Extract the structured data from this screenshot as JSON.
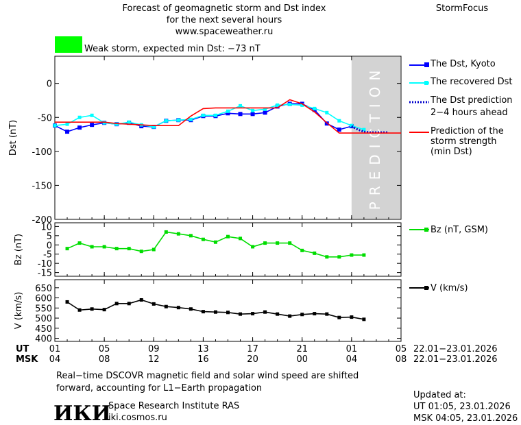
{
  "header": {
    "title_line1": "Forecast of geomagnetic storm and Dst index",
    "title_line2": "for the next several hours",
    "site": "www.spaceweather.ru",
    "brand": "StormFocus"
  },
  "status": {
    "color": "#00ff00",
    "text": "Weak storm, expected min Dst: −73 nT"
  },
  "prediction_watermark": "PREDICTION",
  "axis_labels": {
    "dst": "Dst (nT)",
    "bz": "Bz (nT)",
    "v": "V (km/s)"
  },
  "x_axis": {
    "ut_label": "UT",
    "msk_label": "MSK",
    "ut_ticks": [
      "01",
      "05",
      "09",
      "13",
      "17",
      "21",
      "01",
      "05"
    ],
    "msk_ticks": [
      "04",
      "08",
      "12",
      "16",
      "20",
      "00",
      "04",
      "08"
    ],
    "ut_range": "22.01−23.01.2026",
    "msk_range": "22.01−23.01.2026"
  },
  "legend": {
    "dst_kyoto": "The Dst, Kyoto",
    "recovered": "The recovered Dst",
    "pred_line1": "The Dst prediction",
    "pred_line2": "2−4 hours ahead",
    "strength_line1": "Prediction of the",
    "strength_line2": "storm strength",
    "strength_line3": "(min Dst)",
    "bz": "Bz (nT, GSM)",
    "v": "V (km/s)"
  },
  "footer": {
    "note_line1": "Real−time DSCOVR magnetic field and solar wind speed are shifted",
    "note_line2": "forward, accounting for L1−Earth propagation",
    "logo_text": "ИКИ",
    "institute": "Space Research Institute RAS",
    "site": "iki.cosmos.ru",
    "updated_label": "Updated at:",
    "updated_ut": "UT   01:05, 23.01.2026",
    "updated_msk": "MSK 04:05, 23.01.2026"
  },
  "chart_data": [
    {
      "type": "line",
      "panel": "dst",
      "ylabel": "Dst (nT)",
      "xlim": [
        0,
        28
      ],
      "ylim": [
        -200,
        40
      ],
      "yticks": [
        -200,
        -150,
        -100,
        -50,
        0
      ],
      "prediction_zone_x": [
        24,
        28
      ],
      "series": [
        {
          "name": "The Dst, Kyoto",
          "color": "#0000ff",
          "x": [
            0,
            1,
            2,
            3,
            4,
            5,
            6,
            7,
            8,
            9,
            10,
            11,
            12,
            13,
            14,
            15,
            16,
            17,
            18,
            19,
            20,
            21,
            22,
            23,
            24
          ],
          "y": [
            -62,
            -71,
            -65,
            -61,
            -58,
            -60,
            -58,
            -63,
            -64,
            -55,
            -54,
            -54,
            -48,
            -48,
            -44,
            -45,
            -45,
            -43,
            -34,
            -30,
            -30,
            -39,
            -59,
            -68,
            -63
          ]
        },
        {
          "name": "The recovered Dst",
          "color": "#00ffff",
          "x": [
            0,
            1,
            2,
            3,
            4,
            5,
            6,
            7,
            8,
            9,
            10,
            11,
            12,
            13,
            14,
            15,
            16,
            17,
            18,
            19,
            20,
            21,
            22,
            23,
            24,
            25
          ],
          "y": [
            -62,
            -60,
            -50,
            -47,
            -58,
            -60,
            -57,
            -61,
            -64,
            -55,
            -54,
            -53,
            -47,
            -47,
            -41,
            -33,
            -40,
            -38,
            -32,
            -31,
            -32,
            -37,
            -43,
            -55,
            -62,
            -68
          ]
        },
        {
          "name": "The Dst prediction 2−4 hours ahead",
          "color": "#0000cc",
          "x": [
            24,
            24.5,
            25,
            25.5,
            26,
            26.5,
            27
          ],
          "y": [
            -63,
            -68,
            -71,
            -72,
            -72,
            -72,
            -72
          ]
        },
        {
          "name": "Prediction of the storm strength (min Dst)",
          "color": "#ff0000",
          "x": [
            0,
            4,
            5,
            7,
            8,
            10,
            11,
            12,
            13,
            14,
            17,
            18,
            19,
            20,
            21,
            22,
            23,
            24,
            28
          ],
          "y": [
            -57,
            -57,
            -59,
            -61,
            -62,
            -62,
            -48,
            -37,
            -36,
            -36,
            -36,
            -36,
            -24,
            -30,
            -42,
            -58,
            -73,
            -73,
            -73
          ]
        }
      ]
    },
    {
      "type": "line",
      "panel": "bz",
      "ylabel": "Bz (nT)",
      "xlim": [
        0,
        28
      ],
      "ylim": [
        -17,
        12
      ],
      "yticks": [
        -15,
        -10,
        -5,
        0,
        5,
        10
      ],
      "series": [
        {
          "name": "Bz (nT, GSM)",
          "color": "#00dd00",
          "x": [
            1,
            2,
            3,
            4,
            5,
            6,
            7,
            8,
            9,
            10,
            11,
            12,
            13,
            14,
            15,
            16,
            17,
            18,
            19,
            20,
            21,
            22,
            23,
            24,
            25
          ],
          "y": [
            -2,
            1,
            -1,
            -1,
            -2,
            -2,
            -3.5,
            -2.5,
            7,
            6,
            5,
            3,
            1.5,
            4.5,
            3.5,
            -1,
            1,
            1,
            1,
            -3,
            -4.5,
            -6.5,
            -6.5,
            -5.5,
            -5.5
          ]
        }
      ]
    },
    {
      "type": "line",
      "panel": "v",
      "ylabel": "V (km/s)",
      "xlim": [
        0,
        28
      ],
      "ylim": [
        385,
        690
      ],
      "yticks": [
        400,
        450,
        500,
        550,
        600,
        650
      ],
      "series": [
        {
          "name": "V (km/s)",
          "color": "#000000",
          "x": [
            1,
            2,
            3,
            4,
            5,
            6,
            7,
            8,
            9,
            10,
            11,
            12,
            13,
            14,
            15,
            16,
            17,
            18,
            19,
            20,
            21,
            22,
            23,
            24,
            25
          ],
          "y": [
            580,
            540,
            545,
            542,
            572,
            572,
            590,
            570,
            557,
            552,
            545,
            532,
            530,
            528,
            520,
            522,
            530,
            520,
            510,
            518,
            522,
            520,
            503,
            505,
            494
          ]
        }
      ]
    }
  ]
}
